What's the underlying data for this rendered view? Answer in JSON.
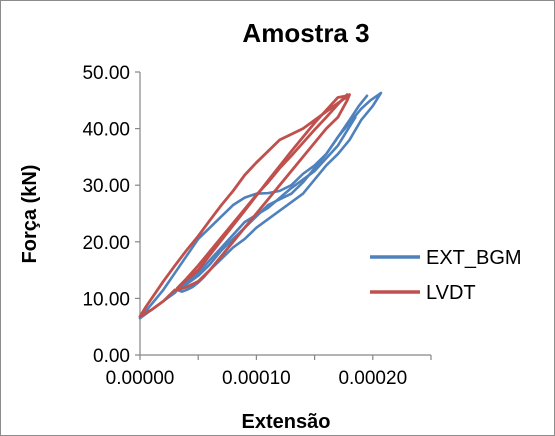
{
  "chart_data": {
    "type": "line",
    "title": "Amostra 3",
    "xlabel": "Extensão",
    "ylabel": "Força (kN)",
    "xlim": [
      0,
      0.00025
    ],
    "ylim": [
      0,
      50
    ],
    "x_ticks": [
      0.0,
      0.0001,
      0.0002
    ],
    "x_tick_labels": [
      "0.00000",
      "0.00010",
      "0.00020"
    ],
    "y_ticks": [
      0,
      10,
      20,
      30,
      40,
      50
    ],
    "y_tick_labels": [
      "0.00",
      "10.00",
      "20.00",
      "30.00",
      "40.00",
      "50.00"
    ],
    "grid": false,
    "legend_position": "right",
    "series": [
      {
        "name": "EXT_BGM",
        "color": "#4f81bd",
        "loops": [
          {
            "x": [
              0.0,
              1e-05,
              2e-05,
              3e-05,
              4e-05,
              5e-05,
              6e-05,
              7e-05,
              8e-05,
              9e-05,
              0.0001,
              0.00011,
              0.00012,
              0.00013,
              0.00014,
              0.00015,
              0.00016,
              0.00017,
              0.00018,
              0.00019,
              0.000198,
              0.000205,
              0.000207,
              0.0002,
              0.00019,
              0.00018,
              0.00017,
              0.00016,
              0.00015,
              0.00014,
              0.00013,
              0.00012,
              0.00011,
              0.0001,
              9e-05,
              8e-05,
              7e-05,
              6e-05,
              5.5e-05,
              5e-05,
              4.5e-05,
              4e-05,
              3.6e-05,
              3.2e-05,
              3e-05,
              2e-05,
              1e-05,
              0.0
            ],
            "y": [
              6.5,
              9.0,
              11.5,
              14.5,
              17.5,
              20.5,
              22.5,
              24.5,
              26.5,
              27.8,
              28.5,
              28.6,
              29.0,
              30.0,
              32.0,
              33.5,
              35.5,
              38.5,
              41.0,
              43.5,
              45.0,
              46.0,
              46.3,
              44.0,
              41.5,
              38.0,
              35.5,
              33.5,
              31.0,
              28.5,
              27.0,
              25.5,
              24.0,
              22.5,
              20.5,
              19.0,
              17.0,
              15.0,
              13.8,
              12.8,
              12.0,
              11.5,
              11.2,
              11.5,
              11.0,
              9.5,
              8.0,
              6.5
            ]
          },
          {
            "x": [
              3.2e-05,
              4e-05,
              5e-05,
              6e-05,
              7e-05,
              8e-05,
              9e-05,
              0.0001,
              0.00011,
              0.00012,
              0.00013,
              0.00014,
              0.00015,
              0.00016,
              0.00017,
              0.00018,
              0.000188,
              0.000195
            ],
            "y": [
              11.5,
              12.5,
              14.0,
              16.0,
              18.5,
              20.5,
              22.5,
              24.5,
              26.5,
              27.5,
              28.5,
              30.5,
              33.0,
              35.5,
              38.5,
              41.5,
              44.0,
              45.8
            ]
          },
          {
            "x": [
              3.5e-05,
              5e-05,
              7e-05,
              9e-05,
              0.00011,
              0.00013,
              0.00015,
              0.00017,
              0.000185
            ],
            "y": [
              12.0,
              14.5,
              19.0,
              23.5,
              26.0,
              29.5,
              32.5,
              37.0,
              42.0
            ]
          }
        ]
      },
      {
        "name": "LVDT",
        "color": "#c0504d",
        "loops": [
          {
            "x": [
              0.0,
              5e-06,
              1e-05,
              1.5e-05,
              2e-05,
              3e-05,
              4e-05,
              5e-05,
              6e-05,
              7e-05,
              8e-05,
              9e-05,
              0.0001,
              0.00011,
              0.00012,
              0.00013,
              0.00014,
              0.00015,
              0.00016,
              0.00017,
              0.000177,
              0.00018,
              0.000178,
              0.00017,
              0.00016,
              0.00015,
              0.00014,
              0.00013,
              0.00012,
              0.00011,
              0.0001,
              9e-05,
              8e-05,
              7e-05,
              6e-05,
              5e-05,
              4e-05,
              3.2e-05,
              3e-05,
              2e-05,
              1e-05,
              0.0
            ],
            "y": [
              6.8,
              8.5,
              10.0,
              11.5,
              13.0,
              15.8,
              18.5,
              21.0,
              23.8,
              26.5,
              29.0,
              31.8,
              34.0,
              36.0,
              38.0,
              39.0,
              40.0,
              41.5,
              43.0,
              44.5,
              45.5,
              46.0,
              45.0,
              42.0,
              40.0,
              37.5,
              35.0,
              32.5,
              30.0,
              27.5,
              25.0,
              22.5,
              20.0,
              17.5,
              15.0,
              13.0,
              12.0,
              11.5,
              11.5,
              9.5,
              8.0,
              6.8
            ]
          },
          {
            "x": [
              3.2e-05,
              4e-05,
              5e-05,
              6e-05,
              7e-05,
              8e-05,
              9e-05,
              0.0001,
              0.00011,
              0.00012,
              0.00013,
              0.00014,
              0.00015,
              0.00016,
              0.00017,
              0.000178
            ],
            "y": [
              11.8,
              13.5,
              15.8,
              18.3,
              20.8,
              23.3,
              25.8,
              28.3,
              30.5,
              33.0,
              35.2,
              37.5,
              39.8,
              42.0,
              44.3,
              46.0
            ]
          },
          {
            "x": [
              3.4e-05,
              5e-05,
              7e-05,
              9e-05,
              0.00011,
              0.00013,
              0.00015,
              0.00017,
              0.000178
            ],
            "y": [
              12.2,
              15.0,
              20.3,
              25.5,
              30.8,
              36.0,
              41.0,
              45.5,
              45.8
            ]
          }
        ]
      }
    ]
  }
}
